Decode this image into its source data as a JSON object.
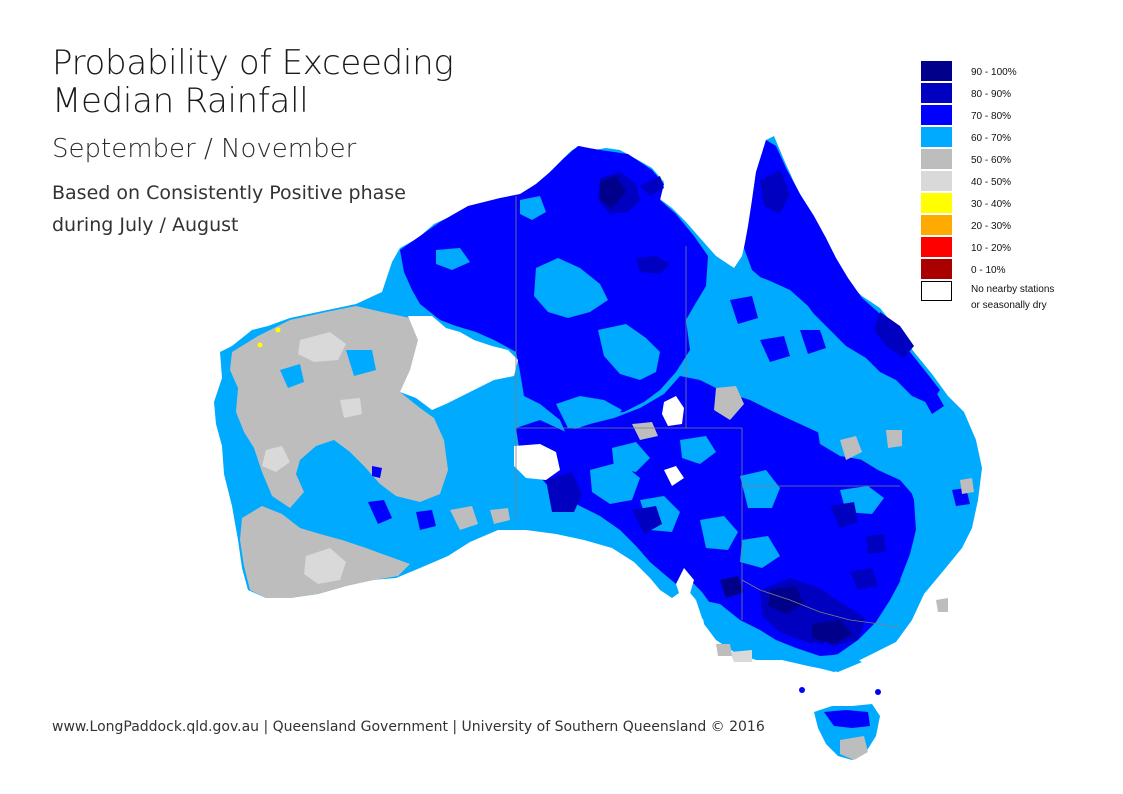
{
  "title_line1": "Probability of Exceeding",
  "title_line2": "Median Rainfall",
  "subtitle": "September / November",
  "basis_line1": "Based on Consistently Positive phase",
  "basis_line2": "during July / August",
  "footer": "www.LongPaddock.qld.gov.au | Queensland Government | University of Southern Queensland © 2016",
  "legend": [
    {
      "label": "90 - 100%",
      "color": "#00008b"
    },
    {
      "label": "80 - 90%",
      "color": "#0000c0"
    },
    {
      "label": "70 - 80%",
      "color": "#0000ff"
    },
    {
      "label": "60 - 70%",
      "color": "#00aaff"
    },
    {
      "label": "50 - 60%",
      "color": "#bdbdbd"
    },
    {
      "label": "40 - 50%",
      "color": "#d9d9d9"
    },
    {
      "label": "30 - 40%",
      "color": "#ffff00"
    },
    {
      "label": "20 - 30%",
      "color": "#ffaa00"
    },
    {
      "label": "10 - 20%",
      "color": "#ff0000"
    },
    {
      "label": "0 - 10%",
      "color": "#aa0000"
    }
  ],
  "legend_nodata_line1": "No nearby stations",
  "legend_nodata_line2": "or seasonally dry"
}
